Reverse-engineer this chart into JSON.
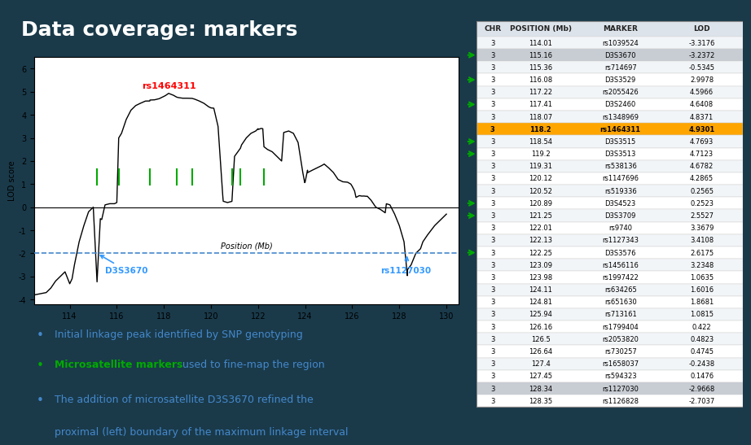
{
  "title": "Data coverage: markers",
  "title_color": "#FFFFFF",
  "bg_color": "#1a3a4a",
  "plot_bg": "#FFFFFF",
  "table_headers": [
    "CHR",
    "POSITION (Mb)",
    "MARKER",
    "LOD"
  ],
  "table_data": [
    [
      3,
      114.01,
      "rs1039524",
      -3.3176,
      false,
      false
    ],
    [
      3,
      115.16,
      "D3S3670",
      -3.2372,
      true,
      false
    ],
    [
      3,
      115.36,
      "rs714697",
      -0.5345,
      false,
      false
    ],
    [
      3,
      116.08,
      "D3S3529",
      2.9978,
      true,
      false
    ],
    [
      3,
      117.22,
      "rs2055426",
      4.5966,
      false,
      false
    ],
    [
      3,
      117.41,
      "D3S2460",
      4.6408,
      true,
      false
    ],
    [
      3,
      118.07,
      "rs1348969",
      4.8371,
      false,
      false
    ],
    [
      3,
      118.2,
      "rs1464311",
      4.9301,
      false,
      true
    ],
    [
      3,
      118.54,
      "D3S3515",
      4.7693,
      true,
      false
    ],
    [
      3,
      119.2,
      "D3S3513",
      4.7123,
      true,
      false
    ],
    [
      3,
      119.31,
      "rs538136",
      4.6782,
      false,
      false
    ],
    [
      3,
      120.12,
      "rs1147696",
      4.2865,
      false,
      false
    ],
    [
      3,
      120.52,
      "rs519336",
      0.2565,
      false,
      false
    ],
    [
      3,
      120.89,
      "D3S4523",
      0.2523,
      true,
      false
    ],
    [
      3,
      121.25,
      "D3S3709",
      2.5527,
      true,
      false
    ],
    [
      3,
      122.01,
      "rs9740",
      3.3679,
      false,
      false
    ],
    [
      3,
      122.13,
      "rs1127343",
      3.4108,
      false,
      false
    ],
    [
      3,
      122.25,
      "D3S3576",
      2.6175,
      true,
      false
    ],
    [
      3,
      123.09,
      "rs1456116",
      3.2348,
      false,
      false
    ],
    [
      3,
      123.98,
      "rs1997422",
      1.0635,
      false,
      false
    ],
    [
      3,
      124.11,
      "rs634265",
      1.6016,
      false,
      false
    ],
    [
      3,
      124.81,
      "rs651630",
      1.8681,
      false,
      false
    ],
    [
      3,
      125.94,
      "rs713161",
      1.0815,
      false,
      false
    ],
    [
      3,
      126.16,
      "rs1799404",
      0.422,
      false,
      false
    ],
    [
      3,
      126.5,
      "rs2053820",
      0.4823,
      false,
      false
    ],
    [
      3,
      126.64,
      "rs730257",
      0.4745,
      false,
      false
    ],
    [
      3,
      127.4,
      "rs1658037",
      -0.2438,
      false,
      false
    ],
    [
      3,
      127.45,
      "rs594323",
      0.1476,
      false,
      false
    ],
    [
      3,
      128.34,
      "rs1127030",
      -2.9668,
      false,
      false
    ],
    [
      3,
      128.35,
      "rs1126828",
      -2.7037,
      false,
      false
    ]
  ],
  "arrow_rows": [
    1,
    3,
    5,
    8,
    9,
    13,
    14,
    17
  ],
  "gray_rows": [
    1,
    28
  ],
  "gold_row": 7,
  "bullet_texts": [
    [
      "black",
      "Initial linkage peak identified by SNP genotyping"
    ],
    [
      "green",
      "Microsatellite markers",
      " used to fine-map the region"
    ],
    [
      "black",
      "The addition of microsatellite D3S3670 refined the\n    proximal (left) boundary of the maximum linkage interval"
    ]
  ],
  "microsatellite_positions": [
    115.16,
    116.08,
    117.41,
    118.54,
    119.2,
    120.89,
    121.25,
    122.25
  ],
  "lod_curve_x": [
    112.5,
    113.0,
    113.2,
    113.4,
    113.6,
    113.8,
    114.0,
    114.1,
    114.2,
    114.4,
    114.6,
    114.8,
    115.0,
    115.16,
    115.3,
    115.36,
    115.5,
    115.7,
    115.9,
    116.0,
    116.08,
    116.2,
    116.4,
    116.6,
    116.8,
    117.0,
    117.2,
    117.22,
    117.4,
    117.41,
    117.6,
    117.8,
    118.0,
    118.07,
    118.2,
    118.4,
    118.54,
    118.6,
    118.8,
    119.0,
    119.2,
    119.31,
    119.5,
    119.7,
    119.9,
    120.0,
    120.1,
    120.12,
    120.3,
    120.5,
    120.52,
    120.7,
    120.89,
    121.0,
    121.25,
    121.3,
    121.5,
    121.7,
    121.9,
    122.0,
    122.01,
    122.1,
    122.13,
    122.2,
    122.25,
    122.4,
    122.6,
    122.8,
    123.0,
    123.09,
    123.3,
    123.5,
    123.7,
    123.9,
    123.98,
    124.0,
    124.1,
    124.11,
    124.3,
    124.5,
    124.7,
    124.81,
    125.0,
    125.2,
    125.4,
    125.6,
    125.8,
    125.94,
    126.0,
    126.1,
    126.16,
    126.3,
    126.4,
    126.5,
    126.6,
    126.64,
    126.8,
    127.0,
    127.2,
    127.4,
    127.45,
    127.6,
    127.8,
    128.0,
    128.2,
    128.34,
    128.35,
    128.5,
    128.7,
    128.9,
    129.0,
    129.2,
    129.5,
    129.8,
    130.0
  ],
  "lod_curve_y": [
    -3.8,
    -3.7,
    -3.5,
    -3.2,
    -3.0,
    -2.8,
    -3.3176,
    -3.1,
    -2.5,
    -1.5,
    -0.8,
    -0.2,
    0.0,
    -3.2372,
    -0.5,
    -0.5345,
    0.1,
    0.15,
    0.15,
    0.2,
    2.9978,
    3.2,
    3.8,
    4.2,
    4.4,
    4.5,
    4.59,
    4.5966,
    4.6,
    4.6408,
    4.65,
    4.7,
    4.8,
    4.8371,
    4.9301,
    4.85,
    4.7693,
    4.75,
    4.72,
    4.72,
    4.7123,
    4.6782,
    4.6,
    4.5,
    4.35,
    4.3,
    4.29,
    4.2865,
    3.5,
    0.5,
    0.2565,
    0.2,
    0.2523,
    2.2,
    2.5527,
    2.7,
    3.0,
    3.2,
    3.3,
    3.4,
    3.3679,
    3.4,
    3.4108,
    3.4,
    2.6175,
    2.5,
    2.4,
    2.2,
    2.0,
    3.2348,
    3.3,
    3.2,
    2.8,
    1.5,
    1.0635,
    1.1,
    1.6016,
    1.5,
    1.6,
    1.7,
    1.8,
    1.8681,
    1.7,
    1.5,
    1.2,
    1.1,
    1.0815,
    1.0,
    0.9,
    0.7,
    0.422,
    0.5,
    0.48,
    0.4823,
    0.47,
    0.4745,
    0.3,
    0.0,
    -0.1,
    -0.2438,
    0.1476,
    0.1,
    -0.3,
    -0.8,
    -1.5,
    -2.9668,
    -2.7037,
    -2.5,
    -2.0,
    -1.8,
    -1.5,
    -1.2,
    -0.8,
    -0.5,
    -0.3
  ]
}
